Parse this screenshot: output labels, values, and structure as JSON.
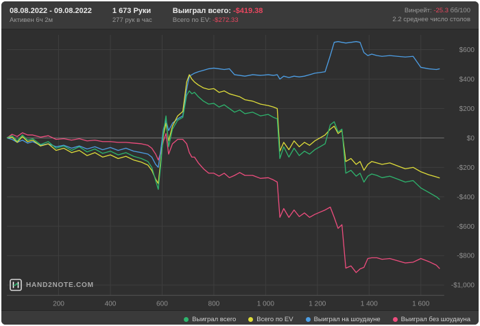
{
  "header": {
    "date_range": "08.08.2022 - 09.08.2022",
    "active_time": "Активен 6ч 2м",
    "hands": "1 673 Руки",
    "hands_per_hour": "277 рук в час",
    "won_total_label": "Выиграл всего:",
    "won_total_value": "-$419.38",
    "ev_total_label": "Всего по EV:",
    "ev_total_value": "-$272.33",
    "winrate_label": "Винрейт:",
    "winrate_value": "-25.3",
    "winrate_unit": "бб/100",
    "avg_tables": "2.2 среднее число столов"
  },
  "logo": {
    "text": "HAND2NOTE.COM"
  },
  "legend": {
    "items": [
      {
        "label": "Выиграл всего",
        "color": "#2eb56e"
      },
      {
        "label": "Всего по EV",
        "color": "#dfdd3a"
      },
      {
        "label": "Выиграл на шоудауне",
        "color": "#4d9ee4"
      },
      {
        "label": "Выиграл без шоудауна",
        "color": "#ee4d7e"
      }
    ]
  },
  "colors": {
    "negative_value_text": "#e8475f",
    "header_background": "#3a3a3a",
    "chart_background": "#2f2f2f",
    "text_primary": "#e9e9e9",
    "text_secondary": "#9a9a9a"
  },
  "chart_data": {
    "type": "line",
    "legend_position": "bottom",
    "grid": true,
    "xlim": [
      0,
      1690
    ],
    "ylim": [
      -1070,
      700
    ],
    "x_ticks": {
      "values": [
        200,
        400,
        600,
        800,
        1000,
        1200,
        1400,
        1600
      ],
      "labels": [
        "200",
        "400",
        "600",
        "800",
        "1 000",
        "1 200",
        "1 400",
        "1 600"
      ]
    },
    "y_ticks": {
      "values": [
        600,
        400,
        200,
        0,
        -200,
        -400,
        -600,
        -800,
        -1000
      ],
      "labels": [
        "$600",
        "$400",
        "$200",
        "$0",
        "-$200",
        "-$400",
        "-$600",
        "-$800",
        "-$1,000"
      ]
    },
    "style": {
      "grid_color": "#3e3e3e",
      "zero_line_color": "#757575",
      "axis_line_color": "#555555",
      "axis_text_color": "#8f8f8f"
    },
    "x": [
      0,
      20,
      40,
      60,
      80,
      100,
      130,
      160,
      190,
      220,
      250,
      280,
      310,
      340,
      370,
      400,
      430,
      460,
      490,
      520,
      545,
      560,
      575,
      585,
      595,
      605,
      615,
      625,
      640,
      660,
      680,
      695,
      705,
      715,
      725,
      740,
      760,
      780,
      800,
      820,
      840,
      860,
      880,
      900,
      920,
      950,
      980,
      1010,
      1030,
      1045,
      1055,
      1070,
      1090,
      1110,
      1130,
      1150,
      1170,
      1190,
      1210,
      1230,
      1250,
      1265,
      1280,
      1295,
      1310,
      1330,
      1350,
      1365,
      1380,
      1395,
      1410,
      1430,
      1450,
      1480,
      1510,
      1540,
      1570,
      1600,
      1630,
      1660,
      1673
    ],
    "series": [
      {
        "id": "won-total",
        "name": "Выиграл всего",
        "color": "#2eb56e",
        "final_value": -419.38,
        "values": [
          0,
          15,
          -20,
          20,
          -15,
          -5,
          -45,
          -25,
          -70,
          -55,
          -85,
          -60,
          -95,
          -75,
          -105,
          -90,
          -115,
          -100,
          -125,
          -140,
          -160,
          -200,
          -290,
          -350,
          -180,
          40,
          150,
          -60,
          60,
          120,
          140,
          290,
          320,
          300,
          310,
          280,
          250,
          230,
          235,
          210,
          225,
          200,
          175,
          190,
          165,
          175,
          150,
          160,
          140,
          130,
          -140,
          -60,
          -130,
          -70,
          -120,
          -90,
          -110,
          -80,
          -60,
          -40,
          90,
          110,
          40,
          60,
          -240,
          -220,
          -260,
          -240,
          -300,
          -260,
          -245,
          -255,
          -270,
          -260,
          -280,
          -300,
          -290,
          -340,
          -370,
          -400,
          -419
        ]
      },
      {
        "id": "ev-total",
        "name": "Всего по EV",
        "color": "#dfdd3a",
        "final_value": -272.33,
        "values": [
          0,
          5,
          -30,
          10,
          -25,
          -15,
          -55,
          -40,
          -85,
          -70,
          -100,
          -85,
          -120,
          -100,
          -130,
          -115,
          -140,
          -125,
          -150,
          -165,
          -185,
          -220,
          -280,
          -310,
          -150,
          20,
          100,
          -20,
          80,
          150,
          180,
          380,
          430,
          400,
          380,
          360,
          340,
          330,
          335,
          310,
          320,
          300,
          290,
          280,
          260,
          250,
          230,
          220,
          210,
          200,
          -90,
          -30,
          -80,
          -20,
          -60,
          -30,
          -50,
          -20,
          0,
          20,
          60,
          80,
          30,
          50,
          -160,
          -140,
          -180,
          -160,
          -220,
          -180,
          -160,
          -170,
          -180,
          -170,
          -190,
          -210,
          -200,
          -230,
          -250,
          -265,
          -272
        ]
      },
      {
        "id": "won-showdown",
        "name": "Выиграл на шоудауне",
        "color": "#4d9ee4",
        "values": [
          0,
          -10,
          -30,
          -15,
          -35,
          -25,
          -50,
          -40,
          -60,
          -50,
          -70,
          -55,
          -75,
          -60,
          -80,
          -65,
          -85,
          -70,
          -90,
          -100,
          -110,
          -130,
          -180,
          -200,
          -80,
          60,
          120,
          50,
          100,
          130,
          150,
          330,
          420,
          430,
          440,
          450,
          460,
          470,
          475,
          470,
          465,
          470,
          430,
          425,
          420,
          430,
          425,
          430,
          425,
          430,
          400,
          420,
          410,
          420,
          415,
          420,
          430,
          440,
          445,
          450,
          560,
          650,
          655,
          650,
          645,
          650,
          655,
          650,
          580,
          560,
          570,
          560,
          555,
          560,
          555,
          550,
          555,
          480,
          470,
          465,
          470
        ]
      },
      {
        "id": "won-non-showdown",
        "name": "Выиграл без шоудауна",
        "color": "#ee4d7e",
        "values": [
          0,
          25,
          10,
          35,
          20,
          20,
          5,
          15,
          -10,
          -5,
          -15,
          -5,
          -20,
          -15,
          -25,
          -25,
          -30,
          -30,
          -35,
          -40,
          -50,
          -70,
          -110,
          -150,
          -100,
          -20,
          30,
          -110,
          -40,
          -10,
          -10,
          -40,
          -100,
          -130,
          -130,
          -170,
          -210,
          -240,
          -240,
          -260,
          -240,
          -270,
          -255,
          -235,
          -255,
          -255,
          -275,
          -270,
          -285,
          -300,
          -540,
          -480,
          -540,
          -490,
          -535,
          -510,
          -540,
          -520,
          -505,
          -490,
          -470,
          -540,
          -615,
          -590,
          -885,
          -870,
          -915,
          -890,
          -880,
          -820,
          -815,
          -815,
          -825,
          -820,
          -835,
          -850,
          -845,
          -820,
          -840,
          -865,
          -889
        ]
      }
    ]
  }
}
